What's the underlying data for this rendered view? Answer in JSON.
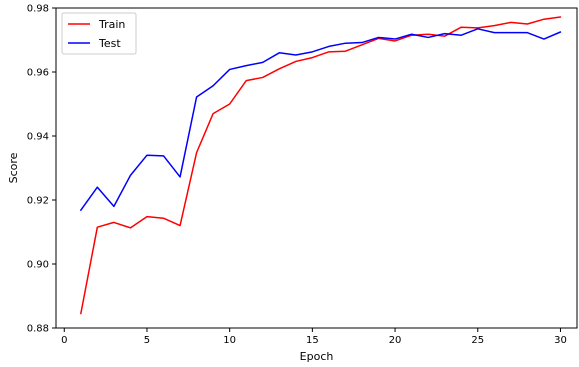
{
  "chart_data": {
    "type": "line",
    "title": "",
    "xlabel": "Epoch",
    "ylabel": "Score",
    "xlim": [
      -0.5,
      31.0
    ],
    "ylim": [
      0.88,
      0.98
    ],
    "xticks": [
      0,
      5,
      10,
      15,
      20,
      25,
      30
    ],
    "yticks": [
      0.88,
      0.9,
      0.92,
      0.94,
      0.96,
      0.98
    ],
    "x": [
      1,
      2,
      3,
      4,
      5,
      6,
      7,
      8,
      9,
      10,
      11,
      12,
      13,
      14,
      15,
      16,
      17,
      18,
      19,
      20,
      21,
      22,
      23,
      24,
      25,
      26,
      27,
      28,
      29,
      30
    ],
    "grid": false,
    "legend_position": "top-left",
    "series": [
      {
        "name": "Train",
        "color": "#ff0000",
        "values": [
          0.8845,
          0.9115,
          0.913,
          0.9113,
          0.9148,
          0.9143,
          0.912,
          0.9348,
          0.947,
          0.95,
          0.9573,
          0.9583,
          0.961,
          0.9633,
          0.9645,
          0.9663,
          0.9665,
          0.9685,
          0.9705,
          0.9697,
          0.9715,
          0.9718,
          0.9712,
          0.974,
          0.9738,
          0.9745,
          0.9755,
          0.975,
          0.9765,
          0.9772
        ]
      },
      {
        "name": "Test",
        "color": "#0000ff",
        "values": [
          0.9168,
          0.924,
          0.918,
          0.9277,
          0.934,
          0.9338,
          0.9272,
          0.9522,
          0.9557,
          0.9608,
          0.962,
          0.963,
          0.966,
          0.9653,
          0.9663,
          0.968,
          0.969,
          0.9692,
          0.9708,
          0.9703,
          0.9718,
          0.9708,
          0.972,
          0.9715,
          0.9735,
          0.9723,
          0.9723,
          0.9723,
          0.9703,
          0.9725
        ]
      }
    ]
  }
}
